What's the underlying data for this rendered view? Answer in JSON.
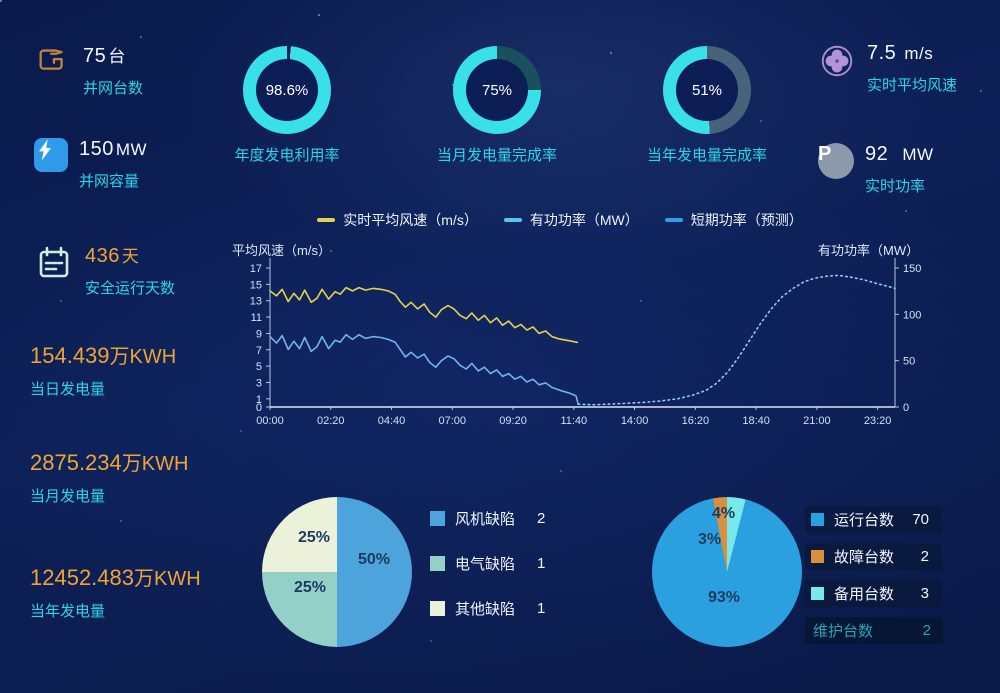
{
  "colors": {
    "cyan_text": "#2bd5e8",
    "orange_text": "#f0a432",
    "white_text": "#f5f8ff",
    "donut_fill": "#38e1ea",
    "donut_rest": [
      "#0c1e55",
      "#1a505e",
      "#48627b"
    ],
    "icon_orange": "#c8823c",
    "icon_blue_bg": "#2f9be8",
    "icon_mint": "#cdeedd",
    "icon_purple": "#b494d6",
    "icon_gray": "#8c99aa",
    "axis": "#c9d6ec",
    "legend_wind": "#e3d24a",
    "legend_power": "#56c8ee",
    "legend_forecast": "#2f9fe8",
    "line_wind": "#e3d24a",
    "line_power": "#6fb6e8",
    "line_forecast": "#93cdf4",
    "pie1": [
      "#4da4dc",
      "#92d0c8",
      "#ecf2d9"
    ],
    "pie2": [
      "#78e9ea",
      "#2ba0e0",
      "#d9903e"
    ],
    "pie_label": "#1c3a5e",
    "disabled_legend": "#2aa0b4"
  },
  "stats_left": [
    {
      "value": "75",
      "unit": "台",
      "label": "并网台数"
    },
    {
      "value": "150",
      "unit": "MW",
      "label": "并网容量"
    },
    {
      "value": "436",
      "unit": "天",
      "label": "安全运行天数"
    },
    {
      "value": "154.439",
      "unit": "万KWH",
      "label": "当日发电量"
    },
    {
      "value": "2875.234",
      "unit": "万KWH",
      "label": "当月发电量"
    },
    {
      "value": "12452.483",
      "unit": "万KWH",
      "label": "当年发电量"
    }
  ],
  "donuts": [
    {
      "percent_label": "98.6%",
      "value": 98.6,
      "label": "年度发电利用率"
    },
    {
      "percent_label": "75%",
      "value": 75,
      "label": "当月发电量完成率"
    },
    {
      "percent_label": "51%",
      "value": 51,
      "label": "当年发电量完成率"
    }
  ],
  "stats_right": [
    {
      "value": "7.5",
      "unit": "m/s",
      "label": "实时平均风速"
    },
    {
      "value": "92",
      "unit": "MW",
      "label": "实时功率"
    }
  ],
  "chart_data": [
    {
      "id": "wind-power-curve",
      "type": "line",
      "legend": [
        "实时平均风速（m/s）",
        "有功功率（MW）",
        "短期功率（预测）"
      ],
      "y_left": {
        "title": "平均风速（m/s）",
        "ticks": [
          17,
          15,
          13,
          11,
          9,
          7,
          5,
          3,
          1,
          0
        ],
        "min": 0,
        "max": 17
      },
      "y_right": {
        "title": "有功功率（MW）",
        "ticks": [
          150,
          100,
          50,
          0
        ],
        "min": 0,
        "max": 150
      },
      "x_labels": [
        "00:00",
        "02:20",
        "04:40",
        "07:00",
        "09:20",
        "11:40",
        "14:00",
        "16:20",
        "18:40",
        "21:00",
        "23:20"
      ],
      "x_minutes_max": 1440,
      "x_tick_step_minutes": 140,
      "grid": false,
      "series": [
        {
          "name": "实时平均风速（m/s）",
          "axis": "left",
          "style": "solid",
          "points": [
            [
              0,
              14.2
            ],
            [
              15,
              13.6
            ],
            [
              28,
              14.4
            ],
            [
              42,
              12.9
            ],
            [
              55,
              13.9
            ],
            [
              68,
              13.1
            ],
            [
              80,
              14.3
            ],
            [
              95,
              12.8
            ],
            [
              108,
              13.3
            ],
            [
              120,
              14.4
            ],
            [
              135,
              13.2
            ],
            [
              150,
              14.1
            ],
            [
              162,
              13.8
            ],
            [
              175,
              14.6
            ],
            [
              190,
              14.2
            ],
            [
              205,
              14.6
            ],
            [
              220,
              14.3
            ],
            [
              238,
              14.5
            ],
            [
              255,
              14.4
            ],
            [
              272,
              14.2
            ],
            [
              288,
              13.8
            ],
            [
              300,
              12.9
            ],
            [
              312,
              12.2
            ],
            [
              325,
              12.8
            ],
            [
              340,
              12.0
            ],
            [
              355,
              12.6
            ],
            [
              368,
              11.6
            ],
            [
              382,
              11.0
            ],
            [
              395,
              11.9
            ],
            [
              410,
              12.4
            ],
            [
              424,
              12.0
            ],
            [
              438,
              11.2
            ],
            [
              452,
              10.8
            ],
            [
              465,
              11.5
            ],
            [
              480,
              10.6
            ],
            [
              494,
              11.2
            ],
            [
              508,
              10.3
            ],
            [
              522,
              10.9
            ],
            [
              536,
              10.0
            ],
            [
              550,
              10.5
            ],
            [
              564,
              9.7
            ],
            [
              578,
              10.1
            ],
            [
              592,
              9.4
            ],
            [
              606,
              9.8
            ],
            [
              620,
              9.0
            ],
            [
              635,
              9.3
            ],
            [
              650,
              8.6
            ],
            [
              668,
              8.3
            ],
            [
              690,
              8.1
            ],
            [
              708,
              7.9
            ]
          ]
        },
        {
          "name": "有功功率（MW）",
          "axis": "right",
          "style": "solid",
          "points": [
            [
              0,
              76
            ],
            [
              15,
              69
            ],
            [
              28,
              77
            ],
            [
              42,
              62
            ],
            [
              55,
              71
            ],
            [
              68,
              63
            ],
            [
              80,
              75
            ],
            [
              95,
              60
            ],
            [
              108,
              65
            ],
            [
              120,
              76
            ],
            [
              135,
              63
            ],
            [
              150,
              72
            ],
            [
              162,
              70
            ],
            [
              175,
              78
            ],
            [
              190,
              73
            ],
            [
              205,
              78
            ],
            [
              220,
              74
            ],
            [
              238,
              76
            ],
            [
              255,
              75
            ],
            [
              272,
              73
            ],
            [
              288,
              70
            ],
            [
              300,
              62
            ],
            [
              312,
              54
            ],
            [
              325,
              59
            ],
            [
              340,
              53
            ],
            [
              355,
              57
            ],
            [
              368,
              48
            ],
            [
              382,
              43
            ],
            [
              395,
              50
            ],
            [
              410,
              55
            ],
            [
              424,
              52
            ],
            [
              438,
              45
            ],
            [
              452,
              41
            ],
            [
              465,
              47
            ],
            [
              480,
              39
            ],
            [
              494,
              43
            ],
            [
              508,
              36
            ],
            [
              522,
              40
            ],
            [
              536,
              33
            ],
            [
              550,
              36
            ],
            [
              564,
              30
            ],
            [
              578,
              33
            ],
            [
              592,
              27
            ],
            [
              606,
              30
            ],
            [
              620,
              24
            ],
            [
              635,
              26
            ],
            [
              650,
              21
            ],
            [
              668,
              18
            ],
            [
              690,
              15
            ],
            [
              705,
              12
            ],
            [
              710,
              3
            ]
          ]
        },
        {
          "name": "短期功率（预测）",
          "axis": "right",
          "style": "dotted",
          "points": [
            [
              710,
              3
            ],
            [
              745,
              2.5
            ],
            [
              780,
              3
            ],
            [
              820,
              4
            ],
            [
              860,
              5
            ],
            [
              900,
              6.5
            ],
            [
              940,
              9
            ],
            [
              975,
              13
            ],
            [
              1005,
              18
            ],
            [
              1030,
              26
            ],
            [
              1055,
              38
            ],
            [
              1080,
              54
            ],
            [
              1105,
              72
            ],
            [
              1130,
              90
            ],
            [
              1155,
              106
            ],
            [
              1180,
              119
            ],
            [
              1205,
              128
            ],
            [
              1230,
              135
            ],
            [
              1255,
              139
            ],
            [
              1280,
              141
            ],
            [
              1310,
              142
            ],
            [
              1340,
              140
            ],
            [
              1370,
              137
            ],
            [
              1400,
              133
            ],
            [
              1425,
              130
            ],
            [
              1440,
              128
            ]
          ]
        }
      ]
    },
    {
      "id": "defect-pie",
      "type": "pie",
      "slices": [
        {
          "label": "风机缺陷",
          "count": 2,
          "percent": 50,
          "percent_label": "50%"
        },
        {
          "label": "电气缺陷",
          "count": 1,
          "percent": 25,
          "percent_label": "25%"
        },
        {
          "label": "其他缺陷",
          "count": 1,
          "percent": 25,
          "percent_label": "25%"
        }
      ],
      "legend": [
        {
          "label": "风机缺陷",
          "count": 2
        },
        {
          "label": "电气缺陷",
          "count": 1
        },
        {
          "label": "其他缺陷",
          "count": 1
        }
      ]
    },
    {
      "id": "unit-status-pie",
      "type": "pie",
      "slices": [
        {
          "label": "备用台数",
          "count": 3,
          "percent": 4,
          "percent_label": "4%"
        },
        {
          "label": "运行台数",
          "count": 70,
          "percent": 93,
          "percent_label": "93%"
        },
        {
          "label": "故障台数",
          "count": 2,
          "percent": 3,
          "percent_label": "3%"
        }
      ],
      "legend": [
        {
          "label": "运行台数",
          "count": 70
        },
        {
          "label": "故障台数",
          "count": 2
        },
        {
          "label": "备用台数",
          "count": 3
        },
        {
          "label": "维护台数",
          "count": 2,
          "disabled": true
        }
      ]
    }
  ]
}
